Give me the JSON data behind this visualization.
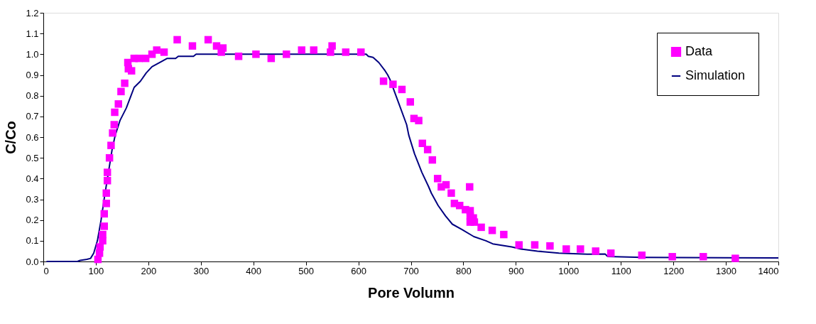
{
  "chart_data": {
    "type": "scatter",
    "xlabel": "Pore Volumn",
    "ylabel": "C/Co",
    "xlim": [
      0,
      1400
    ],
    "xticks": [
      0,
      100,
      200,
      300,
      400,
      500,
      600,
      700,
      800,
      900,
      1000,
      1100,
      1200,
      1300,
      1400
    ],
    "ylim": [
      0,
      1.2
    ],
    "yticks": [
      {
        "value": 0,
        "label": "0.0"
      },
      0.1,
      0.2,
      0.3,
      0.4,
      0.5,
      0.6,
      0.7,
      0.8,
      0.9,
      {
        "value": 1,
        "label": "1.0"
      },
      1.1,
      1.2
    ],
    "grid": false,
    "legend": "top right",
    "series": [
      {
        "name": "Data",
        "marker": "square",
        "color": "#ff00ff",
        "x": [
          104,
          107,
          108,
          113,
          113,
          116,
          116,
          120,
          120,
          122,
          122,
          126,
          129,
          132,
          135,
          136,
          143,
          148,
          155,
          162,
          161,
          168,
          173,
          182,
          195,
          207,
          216,
          230,
          255,
          284,
          314,
          330,
          342,
          339,
          372,
          405,
          434,
          463,
          492,
          515,
          550,
          547,
          576,
          605,
          648,
          666,
          683,
          699,
          706,
          715,
          722,
          732,
          741,
          751,
          758,
          767,
          777,
          812,
          783,
          793,
          804,
          813,
          813,
          819,
          813,
          821,
          834,
          855,
          877,
          906,
          936,
          965,
          996,
          1023,
          1052,
          1081,
          1140,
          1198,
          1257,
          1318
        ],
        "values": [
          0.01,
          0.04,
          0.07,
          0.1,
          0.13,
          0.17,
          0.23,
          0.28,
          0.33,
          0.39,
          0.43,
          0.5,
          0.56,
          0.62,
          0.66,
          0.72,
          0.76,
          0.82,
          0.86,
          0.93,
          0.96,
          0.92,
          0.98,
          0.98,
          0.98,
          1.0,
          1.02,
          1.01,
          1.07,
          1.04,
          1.07,
          1.04,
          1.03,
          1.01,
          0.99,
          1.0,
          0.98,
          1.0,
          1.02,
          1.02,
          1.04,
          1.01,
          1.01,
          1.01,
          0.87,
          0.855,
          0.83,
          0.77,
          0.69,
          0.68,
          0.57,
          0.54,
          0.49,
          0.4,
          0.36,
          0.37,
          0.33,
          0.36,
          0.28,
          0.27,
          0.25,
          0.245,
          0.22,
          0.21,
          0.19,
          0.19,
          0.165,
          0.15,
          0.13,
          0.08,
          0.08,
          0.075,
          0.06,
          0.06,
          0.05,
          0.04,
          0.03,
          0.023,
          0.023,
          0.015
        ]
      },
      {
        "name": "Simulation",
        "type": "line",
        "marker": "none",
        "color": "#000080",
        "x": [
          6,
          65,
          70,
          83,
          90,
          96,
          103,
          110,
          117,
          124,
          131,
          137,
          146,
          158,
          167,
          173,
          185,
          196,
          207,
          225,
          236,
          252,
          257,
          286,
          291,
          615,
          619,
          628,
          639,
          651,
          656,
          660,
          676,
          692,
          696,
          707,
          721,
          734,
          739,
          752,
          766,
          779,
          797,
          820,
          843,
          856,
          892,
          910,
          941,
          982,
          1036,
          1070,
          1075,
          1140,
          1400
        ],
        "values": [
          0,
          0,
          0.005,
          0.01,
          0.015,
          0.04,
          0.1,
          0.2,
          0.32,
          0.43,
          0.54,
          0.61,
          0.68,
          0.74,
          0.8,
          0.84,
          0.87,
          0.91,
          0.94,
          0.965,
          0.98,
          0.98,
          0.99,
          0.99,
          1.0,
          1.0,
          0.99,
          0.985,
          0.96,
          0.92,
          0.9,
          0.88,
          0.77,
          0.66,
          0.61,
          0.52,
          0.43,
          0.36,
          0.33,
          0.27,
          0.22,
          0.18,
          0.155,
          0.12,
          0.1,
          0.085,
          0.07,
          0.06,
          0.05,
          0.04,
          0.035,
          0.036,
          0.024,
          0.02,
          0.017
        ]
      }
    ]
  }
}
